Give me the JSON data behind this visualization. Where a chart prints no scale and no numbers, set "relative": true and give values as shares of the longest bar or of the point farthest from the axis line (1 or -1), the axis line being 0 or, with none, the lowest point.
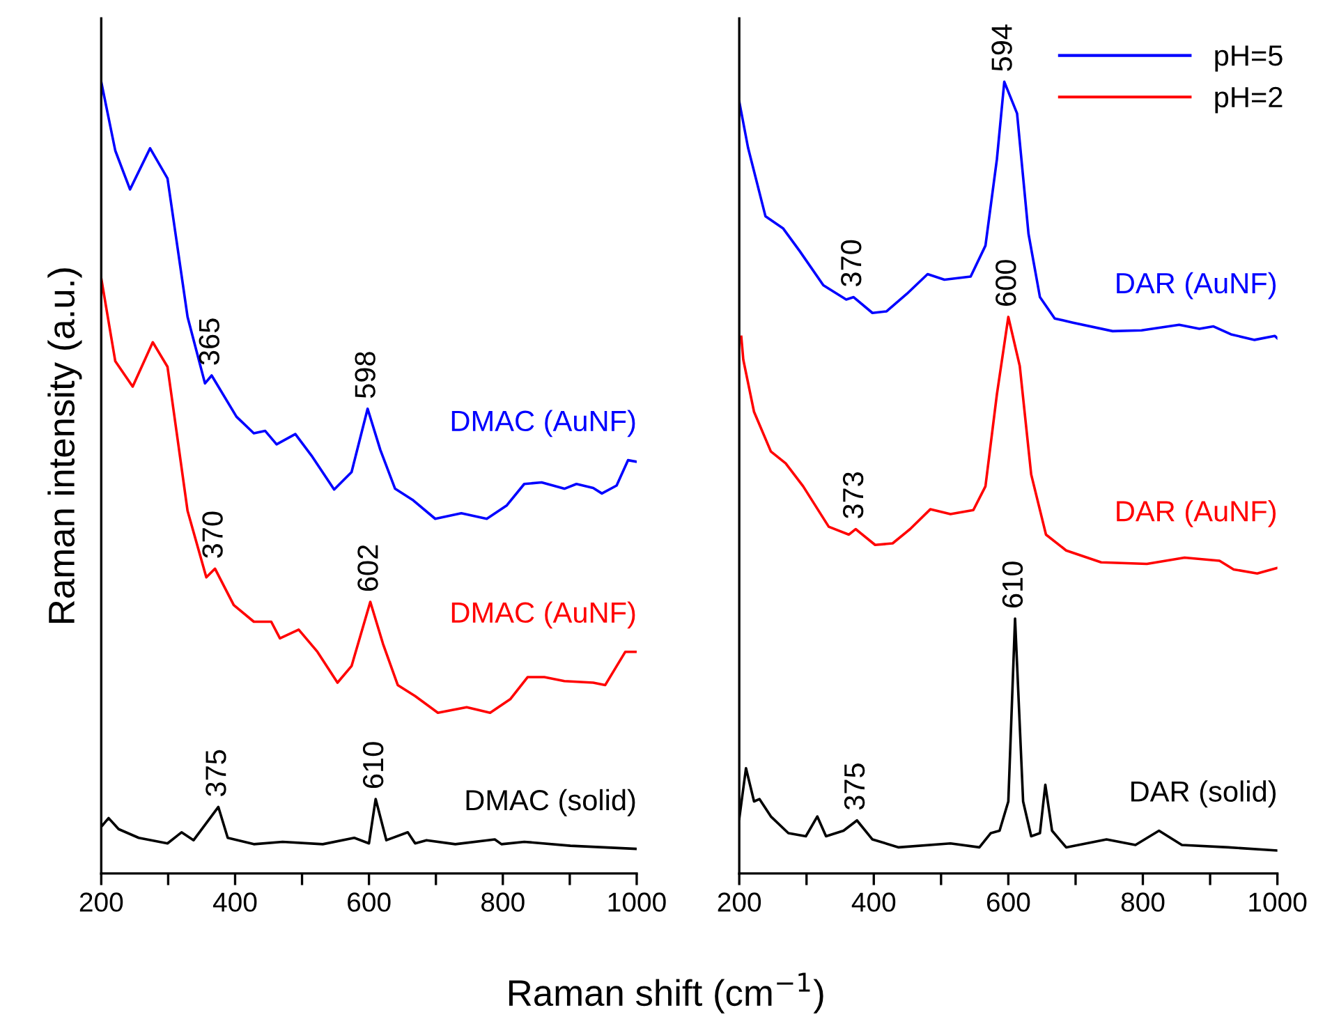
{
  "chart_data": [
    {
      "type": "line",
      "relative": true,
      "ylabel": "Raman intensity (a.u.)",
      "xlabel": "Raman shift (cm$^{−1}$)",
      "xlim": [
        200,
        1000
      ],
      "xticks": [
        200,
        {
          "value": 300,
          "label": null
        },
        400,
        {
          "value": 500,
          "label": null
        },
        600,
        {
          "value": 700,
          "label": null
        },
        800,
        {
          "value": 900,
          "label": null
        },
        1000
      ],
      "tick_labels": "x",
      "grid": false,
      "legend": false,
      "series": [
        {
          "color": "#0000ff",
          "x": [
            200,
            221,
            243,
            273,
            299,
            329,
            355,
            365,
            402,
            428,
            445,
            462,
            490,
            514,
            548,
            574,
            598,
            617,
            639,
            665,
            699,
            738,
            776,
            806,
            832,
            858,
            892,
            910,
            935,
            948,
            970,
            987,
            1000
          ],
          "values": [
            1,
            0.913,
            0.864,
            0.916,
            0.878,
            0.703,
            0.619,
            0.629,
            0.577,
            0.556,
            0.559,
            0.542,
            0.555,
            0.528,
            0.485,
            0.507,
            0.587,
            0.535,
            0.486,
            0.472,
            0.448,
            0.455,
            0.448,
            0.465,
            0.492,
            0.494,
            0.486,
            0.492,
            0.487,
            0.48,
            0.49,
            0.522,
            0.52
          ]
        },
        {
          "color": "#ff0000",
          "x": [
            200,
            221,
            247,
            277,
            299,
            329,
            357,
            370,
            398,
            428,
            454,
            467,
            495,
            523,
            553,
            574,
            602,
            621,
            643,
            669,
            703,
            746,
            781,
            811,
            837,
            862,
            892,
            935,
            953,
            983,
            1000
          ],
          "values": [
            0.752,
            0.647,
            0.615,
            0.671,
            0.64,
            0.458,
            0.374,
            0.385,
            0.339,
            0.318,
            0.318,
            0.297,
            0.308,
            0.28,
            0.241,
            0.262,
            0.343,
            0.29,
            0.238,
            0.224,
            0.203,
            0.21,
            0.203,
            0.22,
            0.248,
            0.248,
            0.243,
            0.241,
            0.238,
            0.28,
            0.28
          ]
        },
        {
          "color": "#000000",
          "x": [
            200,
            211,
            226,
            256,
            299,
            320,
            338,
            375,
            389,
            428,
            471,
            531,
            578,
            600,
            610,
            626,
            658,
            669,
            686,
            729,
            788,
            798,
            832,
            901,
            1000
          ],
          "values": [
            0.059,
            0.07,
            0.056,
            0.045,
            0.038,
            0.052,
            0.042,
            0.084,
            0.045,
            0.037,
            0.04,
            0.037,
            0.045,
            0.038,
            0.094,
            0.042,
            0.052,
            0.038,
            0.042,
            0.037,
            0.043,
            0.037,
            0.04,
            0.035,
            0.031
          ]
        }
      ],
      "annotations": [
        "DMAC (AuNF)",
        "DMAC (AuNF)",
        "DMAC (solid)",
        {
          "text": "365",
          "x": 365,
          "y": 0.629
        },
        {
          "text": "598",
          "x": 598,
          "y": 0.587
        },
        {
          "text": "370",
          "x": 370,
          "y": 0.385
        },
        {
          "text": "602",
          "x": 602,
          "y": 0.343
        },
        {
          "text": "375",
          "x": 375,
          "y": 0.084
        },
        {
          "text": "610",
          "x": 610,
          "y": 0.094
        }
      ]
    },
    {
      "type": "line",
      "relative": true,
      "xlim": [
        200,
        1000
      ],
      "xticks": [
        200,
        {
          "value": 300,
          "label": null
        },
        400,
        {
          "value": 500,
          "label": null
        },
        600,
        {
          "value": 700,
          "label": null
        },
        800,
        {
          "value": 900,
          "label": null
        },
        1000
      ],
      "tick_labels": "x",
      "grid": false,
      "legend": "top right",
      "series": [
        {
          "name": "pH=5",
          "color": "#0000ff",
          "x": [
            200,
            213,
            239,
            265,
            290,
            325,
            359,
            370,
            398,
            419,
            449,
            480,
            505,
            544,
            566,
            583,
            594,
            613,
            630,
            647,
            669,
            695,
            755,
            798,
            854,
            884,
            905,
            931,
            966,
            996,
            1000
          ],
          "values": [
            0.975,
            0.917,
            0.83,
            0.815,
            0.786,
            0.743,
            0.725,
            0.728,
            0.708,
            0.71,
            0.732,
            0.757,
            0.75,
            0.754,
            0.793,
            0.902,
            1,
            0.96,
            0.808,
            0.728,
            0.701,
            0.696,
            0.685,
            0.686,
            0.693,
            0.688,
            0.691,
            0.681,
            0.674,
            0.679,
            0.676
          ]
        },
        {
          "name": "pH=2",
          "color": "#ff0000",
          "x": [
            203,
            206,
            222,
            247,
            269,
            295,
            333,
            363,
            373,
            402,
            428,
            454,
            484,
            514,
            548,
            566,
            583,
            600,
            617,
            634,
            656,
            686,
            738,
            806,
            862,
            914,
            935,
            970,
            1000
          ],
          "values": [
            0.678,
            0.649,
            0.583,
            0.533,
            0.518,
            0.489,
            0.438,
            0.428,
            0.435,
            0.415,
            0.417,
            0.435,
            0.46,
            0.454,
            0.459,
            0.489,
            0.605,
            0.703,
            0.641,
            0.504,
            0.428,
            0.408,
            0.393,
            0.391,
            0.399,
            0.395,
            0.384,
            0.379,
            0.386
          ]
        },
        {
          "color": "#000000",
          "x": [
            200,
            210,
            222,
            230,
            247,
            273,
            299,
            316,
            329,
            355,
            375,
            398,
            437,
            514,
            557,
            574,
            587,
            600,
            610,
            622,
            634,
            647,
            655,
            665,
            686,
            746,
            789,
            824,
            858,
            927,
            1000
          ],
          "values": [
            0.069,
            0.133,
            0.091,
            0.094,
            0.072,
            0.051,
            0.047,
            0.072,
            0.047,
            0.054,
            0.067,
            0.043,
            0.033,
            0.038,
            0.033,
            0.051,
            0.054,
            0.091,
            0.322,
            0.091,
            0.047,
            0.051,
            0.112,
            0.054,
            0.033,
            0.043,
            0.036,
            0.054,
            0.036,
            0.033,
            0.029
          ]
        }
      ],
      "annotations": [
        "DAR (AuNF)",
        "DAR (AuNF)",
        "DAR (solid)",
        {
          "text": "370",
          "x": 370,
          "y": 0.728
        },
        {
          "text": "594",
          "x": 594,
          "y": 1
        },
        {
          "text": "373",
          "x": 373,
          "y": 0.435
        },
        {
          "text": "600",
          "x": 600,
          "y": 0.703
        },
        {
          "text": "375",
          "x": 375,
          "y": 0.067
        },
        {
          "text": "610",
          "x": 610,
          "y": 0.322
        }
      ]
    }
  ]
}
